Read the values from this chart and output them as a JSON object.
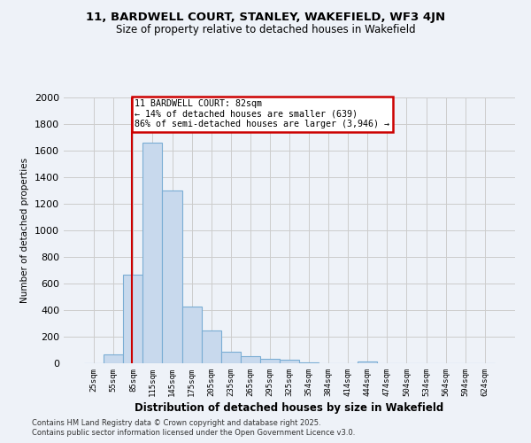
{
  "title1": "11, BARDWELL COURT, STANLEY, WAKEFIELD, WF3 4JN",
  "title2": "Size of property relative to detached houses in Wakefield",
  "xlabel": "Distribution of detached houses by size in Wakefield",
  "ylabel": "Number of detached properties",
  "categories": [
    "25sqm",
    "55sqm",
    "85sqm",
    "115sqm",
    "145sqm",
    "175sqm",
    "205sqm",
    "235sqm",
    "265sqm",
    "295sqm",
    "325sqm",
    "354sqm",
    "384sqm",
    "414sqm",
    "444sqm",
    "474sqm",
    "504sqm",
    "534sqm",
    "564sqm",
    "594sqm",
    "624sqm"
  ],
  "values": [
    0,
    70,
    670,
    1660,
    1300,
    430,
    250,
    90,
    55,
    35,
    25,
    10,
    0,
    0,
    15,
    0,
    0,
    0,
    0,
    0,
    0
  ],
  "bar_color": "#c8d9ed",
  "bar_edge_color": "#7aadd4",
  "property_line_x": 1.93,
  "annotation_line1": "11 BARDWELL COURT: 82sqm",
  "annotation_line2": "← 14% of detached houses are smaller (639)",
  "annotation_line3": "86% of semi-detached houses are larger (3,946) →",
  "annotation_box_color": "#cc0000",
  "ylim": [
    0,
    2000
  ],
  "yticks": [
    0,
    200,
    400,
    600,
    800,
    1000,
    1200,
    1400,
    1600,
    1800,
    2000
  ],
  "grid_color": "#cccccc",
  "bg_color": "#eef2f8",
  "footer1": "Contains HM Land Registry data © Crown copyright and database right 2025.",
  "footer2": "Contains public sector information licensed under the Open Government Licence v3.0."
}
